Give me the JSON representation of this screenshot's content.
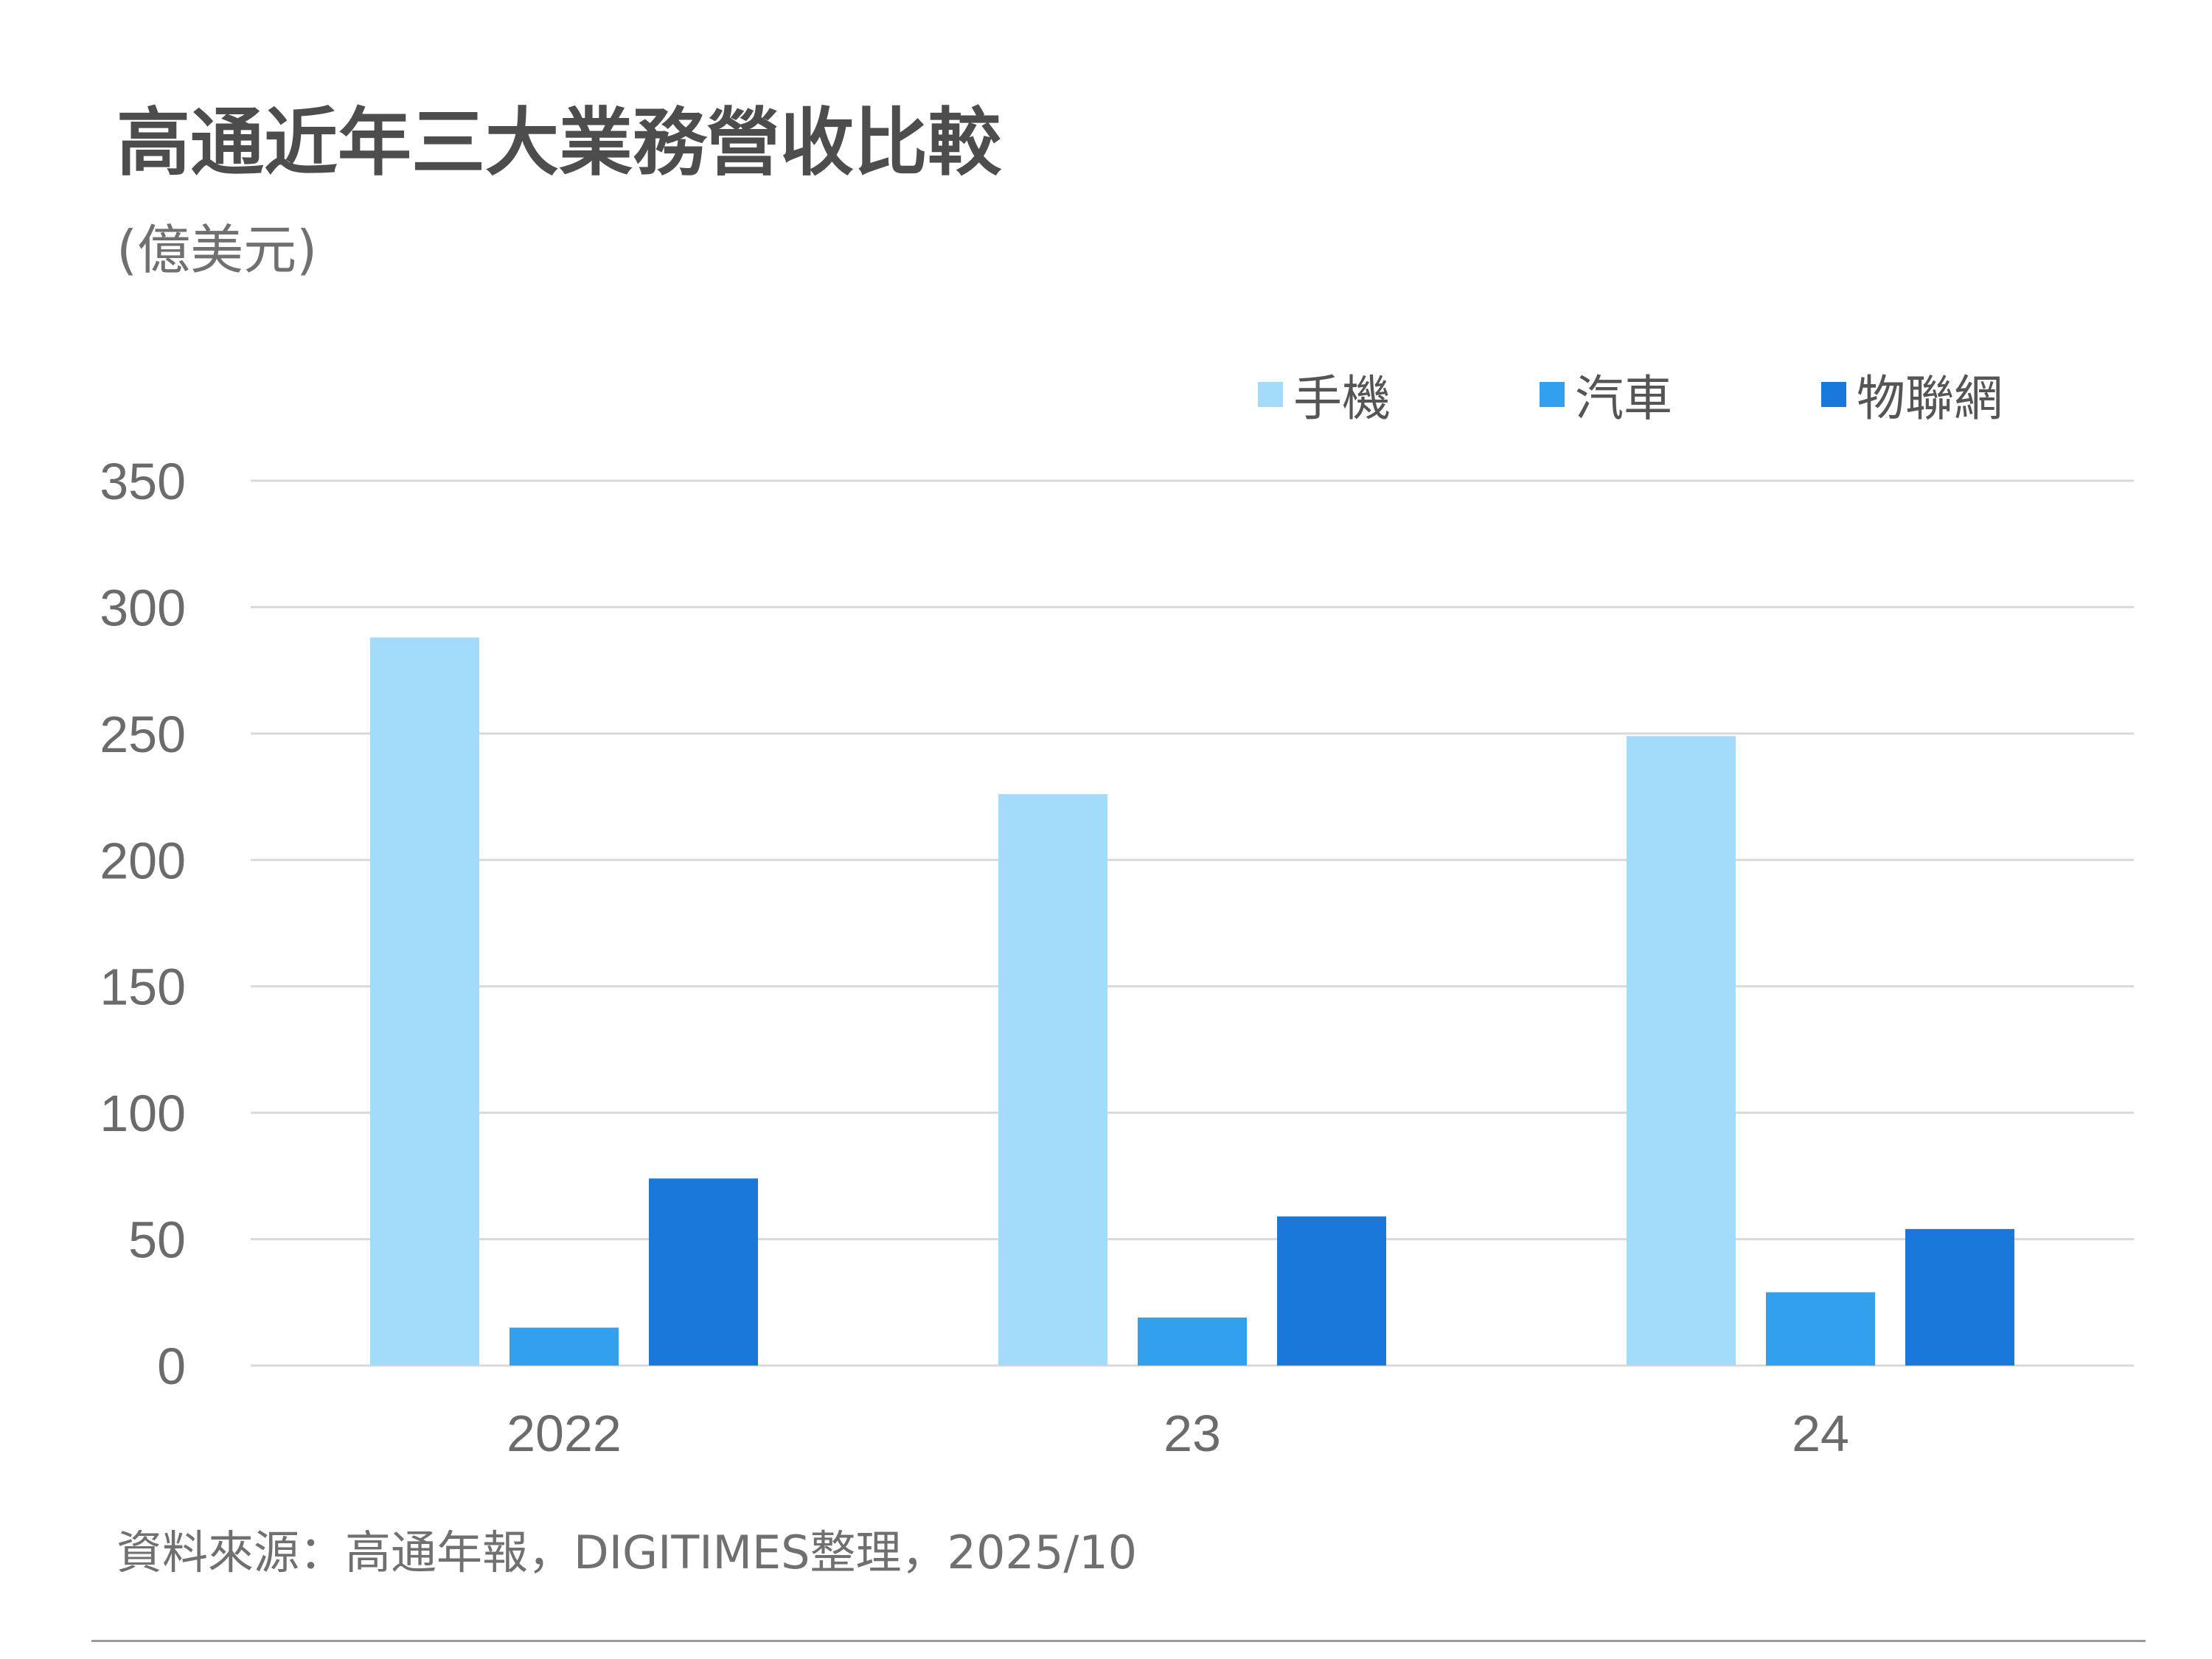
{
  "colors": {
    "phone": "#a3dbfa",
    "auto": "#33a0ee",
    "iot": "#1a78db",
    "grid": "#d9d9d9",
    "tick_text": "#6b6b6b"
  },
  "chart_data": {
    "type": "bar",
    "title": "高通近年三大業務營收比較",
    "subtitle": "(億美元)",
    "categories": [
      "2022",
      "23",
      "24"
    ],
    "series": [
      {
        "name": "手機",
        "values": [
          288,
          226,
          249
        ]
      },
      {
        "name": "汽車",
        "values": [
          15,
          19,
          29
        ]
      },
      {
        "name": "物聯網",
        "values": [
          74,
          59,
          54
        ]
      }
    ],
    "y_ticks": [
      "0",
      "50",
      "100",
      "150",
      "200",
      "250",
      "300",
      "350"
    ],
    "ylim": [
      0,
      350
    ],
    "grid": true,
    "legend_position": "top-right",
    "source": "資料來源：高通年報，DIGITIMES整理，2025/10"
  }
}
